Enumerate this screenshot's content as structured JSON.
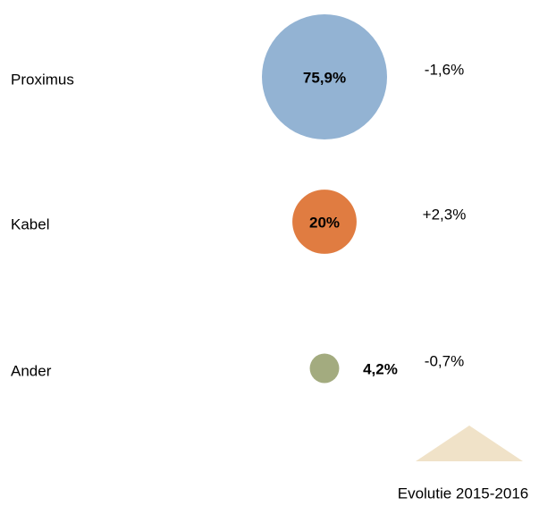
{
  "chart_data": {
    "type": "bubble",
    "categories": [
      "Proximus",
      "Kabel",
      "Ander"
    ],
    "values": [
      75.9,
      20,
      4.2
    ],
    "value_labels": [
      "75,9%",
      "20%",
      "4,2%"
    ],
    "colors": [
      "#93b3d3",
      "#e07c41",
      "#a3ab7f"
    ],
    "change_values": [
      -1.6,
      2.3,
      -0.7
    ],
    "change_labels": [
      "-1,6%",
      "+2,3%",
      "-0,7%"
    ],
    "change_legend": "Evolutie 2015-2016"
  }
}
